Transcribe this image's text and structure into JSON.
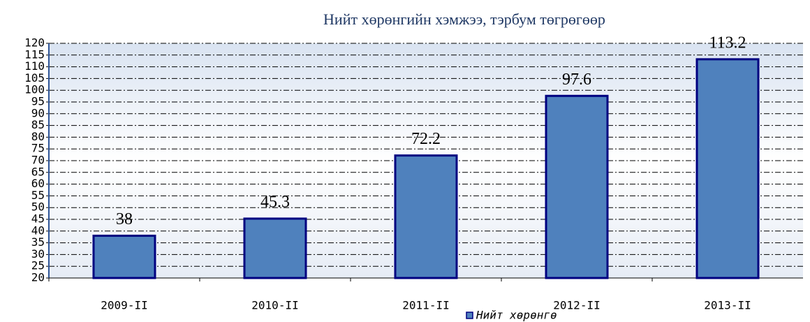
{
  "chart_data": {
    "type": "bar",
    "title": "Нийт хөрөнгийн хэмжээ, тэрбум төгрөгөөр",
    "categories": [
      "2009-II",
      "2010-II",
      "2011-II",
      "2012-II",
      "2013-II"
    ],
    "series": [
      {
        "name": "Нийт хөрөнгө",
        "color": "#4f81bd",
        "values": [
          38,
          45.3,
          72.2,
          97.6,
          113.2
        ]
      }
    ],
    "ylim": [
      20,
      120
    ],
    "yticks": [
      20,
      25,
      30,
      35,
      40,
      45,
      50,
      55,
      60,
      65,
      70,
      75,
      80,
      85,
      90,
      95,
      100,
      105,
      110,
      115,
      120
    ],
    "grid": true,
    "legend": "bottom"
  }
}
